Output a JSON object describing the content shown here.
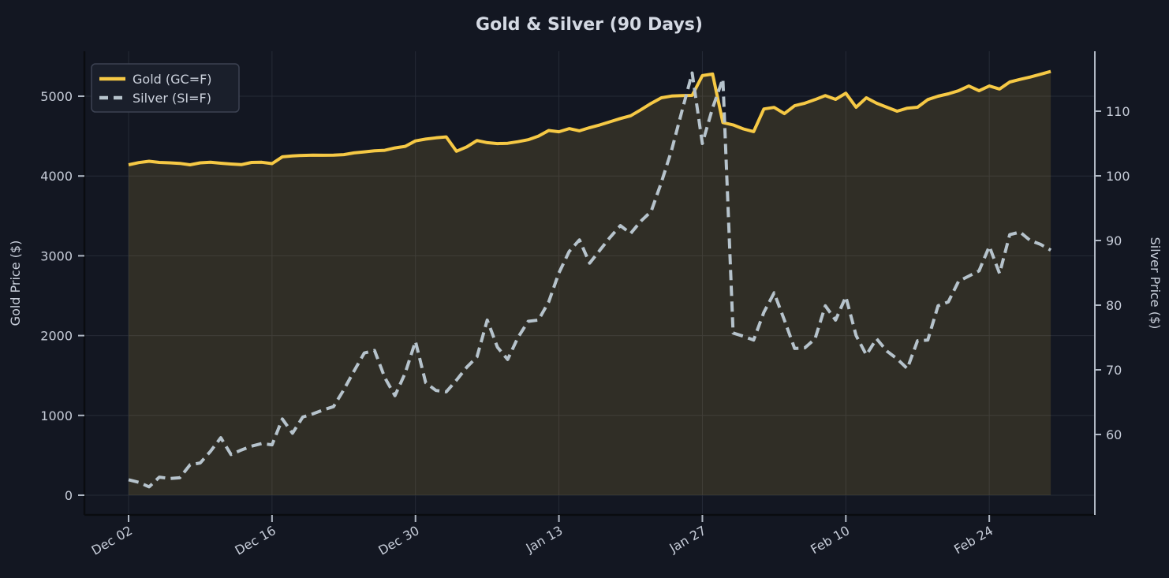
{
  "title": "Gold & Silver (90 Days)",
  "colors": {
    "background": "#131722",
    "gold_line": "#f6c945",
    "silver_line": "#b6c3cc",
    "area_fill": "rgba(246,201,69,0.13)",
    "grid": "#262b37",
    "text": "#c7cdd9",
    "spine_dark": "#0a0c10",
    "spine_light": "#b0b8c4",
    "legend_bg": "#1a1f2b",
    "legend_border": "#3c4252"
  },
  "chart_data": {
    "type": "line",
    "title": "Gold & Silver (90 Days)",
    "x_start_date": "Dec 02",
    "x_end_date": "Mar 02",
    "x_tick_labels": [
      "Dec 02",
      "Dec 16",
      "Dec 30",
      "Jan 13",
      "Jan 27",
      "Feb 10",
      "Feb 24"
    ],
    "x_tick_days": [
      0,
      14,
      28,
      42,
      56,
      70,
      84
    ],
    "grid": "on",
    "legend_position": "upper-left",
    "legend": [
      {
        "label": "Gold (GC=F)",
        "style": "solid",
        "color": "#f6c945"
      },
      {
        "label": "Silver (SI=F)",
        "style": "dashed",
        "color": "#b6c3cc"
      }
    ],
    "left_axis": {
      "label": "Gold Price ($)",
      "ticks": [
        0,
        1000,
        2000,
        3000,
        4000,
        5000
      ],
      "ylim": [
        -250,
        5563
      ]
    },
    "right_axis": {
      "label": "Silver Price ($)",
      "ticks": [
        60,
        70,
        80,
        90,
        100,
        110
      ],
      "ylim": [
        47.6,
        119.3
      ]
    },
    "series": [
      {
        "name": "Gold (GC=F)",
        "axis": "left",
        "values": [
          4140,
          4168,
          4185,
          4170,
          4165,
          4158,
          4140,
          4165,
          4172,
          4160,
          4150,
          4142,
          4170,
          4172,
          4155,
          4240,
          4252,
          4258,
          4262,
          4260,
          4262,
          4268,
          4290,
          4302,
          4316,
          4322,
          4352,
          4372,
          4440,
          4462,
          4478,
          4490,
          4310,
          4365,
          4445,
          4418,
          4406,
          4410,
          4430,
          4455,
          4500,
          4570,
          4554,
          4594,
          4566,
          4606,
          4640,
          4680,
          4720,
          4755,
          4830,
          4910,
          4980,
          5002,
          5008,
          5010,
          5258,
          5278,
          4670,
          4640,
          4590,
          4556,
          4840,
          4860,
          4782,
          4880,
          4912,
          4958,
          5008,
          4960,
          5038,
          4862,
          4980,
          4912,
          4862,
          4812,
          4850,
          4862,
          4958,
          5000,
          5030,
          5068,
          5128,
          5068,
          5128,
          5090,
          5178,
          5210,
          5240,
          5275,
          5310
        ]
      },
      {
        "name": "Silver (SI=F)",
        "axis": "right",
        "values": [
          53.0,
          52.6,
          51.9,
          53.4,
          53.2,
          53.3,
          55.3,
          55.6,
          57.4,
          59.5,
          56.9,
          57.6,
          58.2,
          58.6,
          58.4,
          62.4,
          60.2,
          62.7,
          63.2,
          63.8,
          64.3,
          66.9,
          69.8,
          72.6,
          73.0,
          68.8,
          66.0,
          69.5,
          74.4,
          68.0,
          66.8,
          66.6,
          68.4,
          70.4,
          72.0,
          77.7,
          73.5,
          71.6,
          75.0,
          77.5,
          77.7,
          80.5,
          85.0,
          88.3,
          90.1,
          86.5,
          88.5,
          90.5,
          92.3,
          91.1,
          93.0,
          94.5,
          99.0,
          104.0,
          110.0,
          115.9,
          105.0,
          110.5,
          115.0,
          75.7,
          75.2,
          74.6,
          78.9,
          81.9,
          77.7,
          73.3,
          73.4,
          74.8,
          79.9,
          77.7,
          81.3,
          75.3,
          72.3,
          74.8,
          72.9,
          71.7,
          70.2,
          74.5,
          74.6,
          79.9,
          80.5,
          83.7,
          84.5,
          85.3,
          89.1,
          84.9,
          90.9,
          91.3,
          90.0,
          89.4,
          88.5
        ]
      }
    ]
  }
}
